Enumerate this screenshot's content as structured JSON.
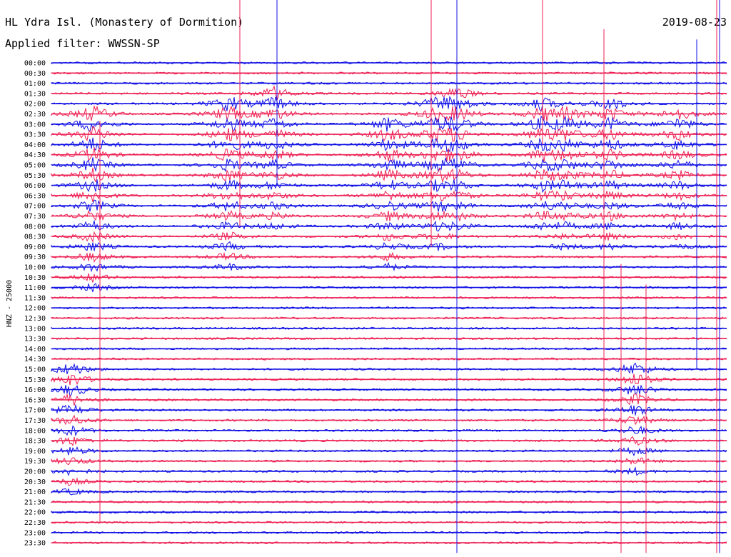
{
  "header": {
    "station": "HL Ydra Isl. (Monastery of Dormition)",
    "filter": "Applied filter: WWSSN-SP",
    "date": "2019-08-23"
  },
  "chart_data": {
    "type": "line",
    "title": "HL Ydra Isl. (Monastery of Dormition)",
    "subtitle": "Applied filter: WWSSN-SP",
    "ylabel": "HNZ - 25000",
    "xlabel": "",
    "grid": false,
    "legend": "none",
    "colors": [
      "#1010e6",
      "#ee2255"
    ],
    "row_interval_minutes": 30,
    "rows": [
      "00:00",
      "00:30",
      "01:00",
      "01:30",
      "02:00",
      "02:30",
      "03:00",
      "03:30",
      "04:00",
      "04:30",
      "05:00",
      "05:30",
      "06:00",
      "06:30",
      "07:00",
      "07:30",
      "08:00",
      "08:30",
      "09:00",
      "09:30",
      "10:00",
      "10:30",
      "11:00",
      "11:30",
      "12:00",
      "12:30",
      "13:00",
      "13:30",
      "14:00",
      "14:30",
      "15:00",
      "15:30",
      "16:00",
      "16:30",
      "17:00",
      "17:30",
      "18:00",
      "18:30",
      "19:00",
      "19:30",
      "20:00",
      "20:30",
      "21:00",
      "21:30",
      "22:00",
      "22:30",
      "23:00",
      "23:30"
    ]
  }
}
